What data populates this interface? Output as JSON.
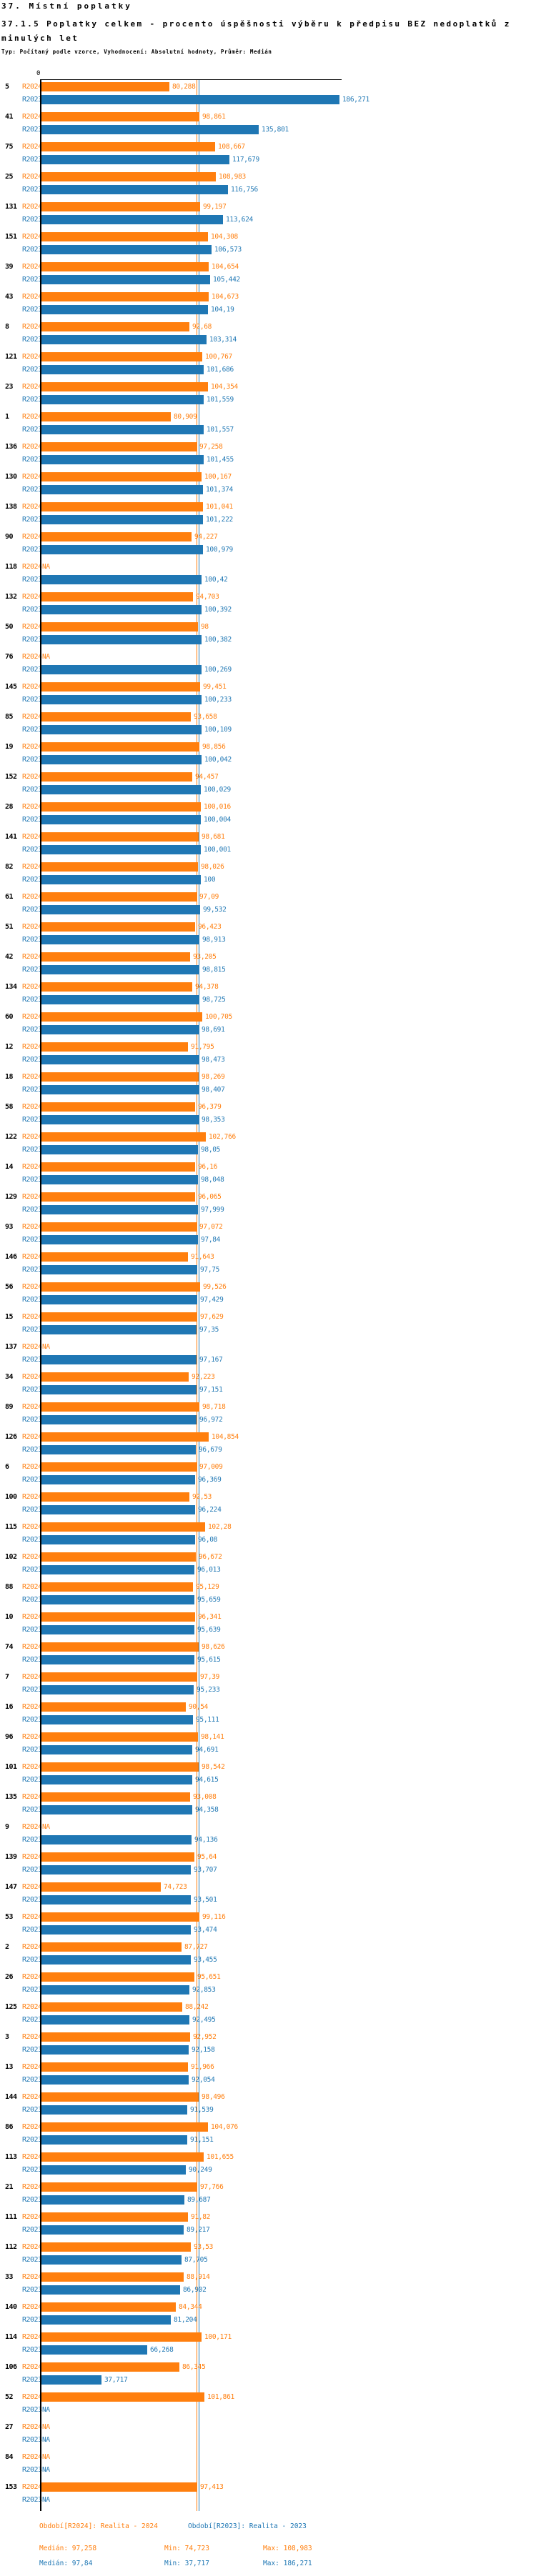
{
  "header": {
    "title": "37. Místní poplatky",
    "subtitle": "37.1.5 Poplatky celkem - procento úspěšnosti výběru k předpisu BEZ nedoplatků z minulých let",
    "meta": "Typ: Počítaný podle vzorce, Vyhodnocení: Absolutní hodnoty, Průměr: Medián"
  },
  "chart_data": {
    "type": "bar",
    "orientation": "horizontal",
    "series_names": [
      "R2024",
      "R2023"
    ],
    "colors": {
      "r2024": "#ff7f0e",
      "r2023": "#1f77b4",
      "axis": "#000000"
    },
    "axis_zero_label": "0",
    "na_label": "NA",
    "value_unit": "procento úspěšnosti",
    "medians": {
      "r2024": 97.258,
      "r2023": 97.84
    },
    "rows": [
      {
        "id": "5",
        "r2024": "80,288",
        "r2023": "186,271"
      },
      {
        "id": "41",
        "r2024": "98,861",
        "r2023": "135,801"
      },
      {
        "id": "75",
        "r2024": "108,667",
        "r2023": "117,679"
      },
      {
        "id": "25",
        "r2024": "108,983",
        "r2023": "116,756"
      },
      {
        "id": "131",
        "r2024": "99,197",
        "r2023": "113,624"
      },
      {
        "id": "151",
        "r2024": "104,308",
        "r2023": "106,573"
      },
      {
        "id": "39",
        "r2024": "104,654",
        "r2023": "105,442"
      },
      {
        "id": "43",
        "r2024": "104,673",
        "r2023": "104,19"
      },
      {
        "id": "8",
        "r2024": "92,68",
        "r2023": "103,314"
      },
      {
        "id": "121",
        "r2024": "100,767",
        "r2023": "101,686"
      },
      {
        "id": "23",
        "r2024": "104,354",
        "r2023": "101,559"
      },
      {
        "id": "1",
        "r2024": "80,909",
        "r2023": "101,557"
      },
      {
        "id": "136",
        "r2024": "97,258",
        "r2023": "101,455"
      },
      {
        "id": "130",
        "r2024": "100,167",
        "r2023": "101,374"
      },
      {
        "id": "138",
        "r2024": "101,041",
        "r2023": "101,222"
      },
      {
        "id": "90",
        "r2024": "94,227",
        "r2023": "100,979"
      },
      {
        "id": "118",
        "r2024": "NA",
        "r2023": "100,42"
      },
      {
        "id": "132",
        "r2024": "94,703",
        "r2023": "100,392"
      },
      {
        "id": "50",
        "r2024": "98",
        "r2023": "100,382"
      },
      {
        "id": "76",
        "r2024": "NA",
        "r2023": "100,269"
      },
      {
        "id": "145",
        "r2024": "99,451",
        "r2023": "100,233"
      },
      {
        "id": "85",
        "r2024": "93,658",
        "r2023": "100,109"
      },
      {
        "id": "19",
        "r2024": "98,856",
        "r2023": "100,042"
      },
      {
        "id": "152",
        "r2024": "94,457",
        "r2023": "100,029"
      },
      {
        "id": "28",
        "r2024": "100,016",
        "r2023": "100,004"
      },
      {
        "id": "141",
        "r2024": "98,681",
        "r2023": "100,001"
      },
      {
        "id": "82",
        "r2024": "98,026",
        "r2023": "100"
      },
      {
        "id": "61",
        "r2024": "97,09",
        "r2023": "99,532"
      },
      {
        "id": "51",
        "r2024": "96,423",
        "r2023": "98,913"
      },
      {
        "id": "42",
        "r2024": "93,205",
        "r2023": "98,815"
      },
      {
        "id": "134",
        "r2024": "94,378",
        "r2023": "98,725"
      },
      {
        "id": "60",
        "r2024": "100,705",
        "r2023": "98,691"
      },
      {
        "id": "12",
        "r2024": "91,795",
        "r2023": "98,473"
      },
      {
        "id": "18",
        "r2024": "98,269",
        "r2023": "98,407"
      },
      {
        "id": "58",
        "r2024": "96,379",
        "r2023": "98,353"
      },
      {
        "id": "122",
        "r2024": "102,766",
        "r2023": "98,05"
      },
      {
        "id": "14",
        "r2024": "96,16",
        "r2023": "98,048"
      },
      {
        "id": "129",
        "r2024": "96,065",
        "r2023": "97,999"
      },
      {
        "id": "93",
        "r2024": "97,072",
        "r2023": "97,84"
      },
      {
        "id": "146",
        "r2024": "91,643",
        "r2023": "97,75"
      },
      {
        "id": "56",
        "r2024": "99,526",
        "r2023": "97,429"
      },
      {
        "id": "15",
        "r2024": "97,629",
        "r2023": "97,35"
      },
      {
        "id": "137",
        "r2024": "NA",
        "r2023": "97,167"
      },
      {
        "id": "34",
        "r2024": "92,223",
        "r2023": "97,151"
      },
      {
        "id": "89",
        "r2024": "98,718",
        "r2023": "96,972"
      },
      {
        "id": "126",
        "r2024": "104,854",
        "r2023": "96,679"
      },
      {
        "id": "6",
        "r2024": "97,009",
        "r2023": "96,369"
      },
      {
        "id": "100",
        "r2024": "92,53",
        "r2023": "96,224"
      },
      {
        "id": "115",
        "r2024": "102,28",
        "r2023": "96,08"
      },
      {
        "id": "102",
        "r2024": "96,672",
        "r2023": "96,013"
      },
      {
        "id": "88",
        "r2024": "95,129",
        "r2023": "95,659"
      },
      {
        "id": "10",
        "r2024": "96,341",
        "r2023": "95,639"
      },
      {
        "id": "74",
        "r2024": "98,626",
        "r2023": "95,615"
      },
      {
        "id": "7",
        "r2024": "97,39",
        "r2023": "95,233"
      },
      {
        "id": "16",
        "r2024": "90,54",
        "r2023": "95,111"
      },
      {
        "id": "96",
        "r2024": "98,141",
        "r2023": "94,691"
      },
      {
        "id": "101",
        "r2024": "98,542",
        "r2023": "94,615"
      },
      {
        "id": "135",
        "r2024": "93,008",
        "r2023": "94,358"
      },
      {
        "id": "9",
        "r2024": "NA",
        "r2023": "94,136"
      },
      {
        "id": "139",
        "r2024": "95,64",
        "r2023": "93,707"
      },
      {
        "id": "147",
        "r2024": "74,723",
        "r2023": "93,501"
      },
      {
        "id": "53",
        "r2024": "99,116",
        "r2023": "93,474"
      },
      {
        "id": "2",
        "r2024": "87,727",
        "r2023": "93,455"
      },
      {
        "id": "26",
        "r2024": "95,651",
        "r2023": "92,853"
      },
      {
        "id": "125",
        "r2024": "88,242",
        "r2023": "92,495"
      },
      {
        "id": "3",
        "r2024": "92,952",
        "r2023": "92,158"
      },
      {
        "id": "13",
        "r2024": "91,966",
        "r2023": "92,054"
      },
      {
        "id": "144",
        "r2024": "98,496",
        "r2023": "91,539"
      },
      {
        "id": "86",
        "r2024": "104,076",
        "r2023": "91,151"
      },
      {
        "id": "113",
        "r2024": "101,655",
        "r2023": "90,249"
      },
      {
        "id": "21",
        "r2024": "97,766",
        "r2023": "89,687"
      },
      {
        "id": "111",
        "r2024": "91,82",
        "r2023": "89,217"
      },
      {
        "id": "112",
        "r2024": "93,53",
        "r2023": "87,705"
      },
      {
        "id": "33",
        "r2024": "88,914",
        "r2023": "86,902"
      },
      {
        "id": "140",
        "r2024": "84,344",
        "r2023": "81,204"
      },
      {
        "id": "114",
        "r2024": "100,171",
        "r2023": "66,268"
      },
      {
        "id": "106",
        "r2024": "86,345",
        "r2023": "37,717"
      },
      {
        "id": "52",
        "r2024": "101,861",
        "r2023": "NA"
      },
      {
        "id": "27",
        "r2024": "NA",
        "r2023": "NA"
      },
      {
        "id": "84",
        "r2024": "NA",
        "r2023": "NA"
      },
      {
        "id": "153",
        "r2024": "97,413",
        "r2023": "NA"
      }
    ]
  },
  "footer": {
    "legend_2024": "Období[R2024]: Realita - 2024",
    "legend_2023": "Období[R2023]: Realita - 2023",
    "stats_2024": {
      "median_label": "Medián: 97,258",
      "min_label": "Min: 74,723",
      "max_label": "Max: 108,983"
    },
    "stats_2023": {
      "median_label": "Medián: 97,84",
      "min_label": "Min: 37,717",
      "max_label": "Max: 186,271"
    }
  }
}
